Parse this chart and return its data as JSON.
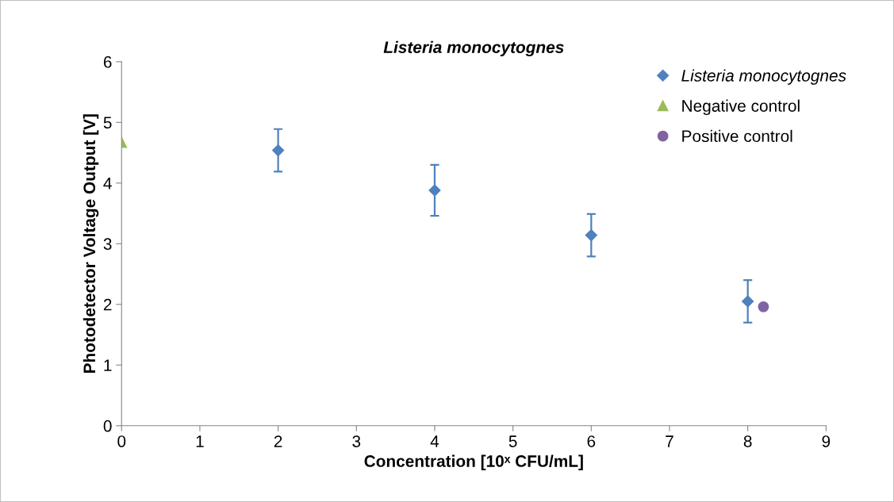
{
  "chart_data": {
    "type": "scatter",
    "title": "Listeria monocytognes",
    "xlabel": "Concentration [10ˣ CFU/mL]",
    "ylabel": "Photodetector Voltage Output [V]",
    "xlim": [
      0,
      9
    ],
    "xticks": [
      0,
      1,
      2,
      3,
      4,
      5,
      6,
      7,
      8,
      9
    ],
    "ylim": [
      0,
      6
    ],
    "yticks": [
      0,
      1,
      2,
      3,
      4,
      5,
      6
    ],
    "grid": false,
    "legend": "top right",
    "series": [
      {
        "name": "Listeria monocytognes",
        "color": "#4f81bd",
        "marker": "diamond",
        "x": [
          2,
          4,
          6,
          8
        ],
        "values": [
          4.54,
          3.88,
          3.14,
          2.05
        ],
        "errors": [
          0.35,
          0.42,
          0.35,
          0.35
        ]
      },
      {
        "name": "Negative control",
        "color": "#9bbb59",
        "marker": "triangle",
        "x": [
          0
        ],
        "values": [
          4.67
        ]
      },
      {
        "name": "Positive control",
        "color": "#8064a2",
        "marker": "circle",
        "x": [
          8.2
        ],
        "values": [
          1.96
        ]
      }
    ]
  }
}
